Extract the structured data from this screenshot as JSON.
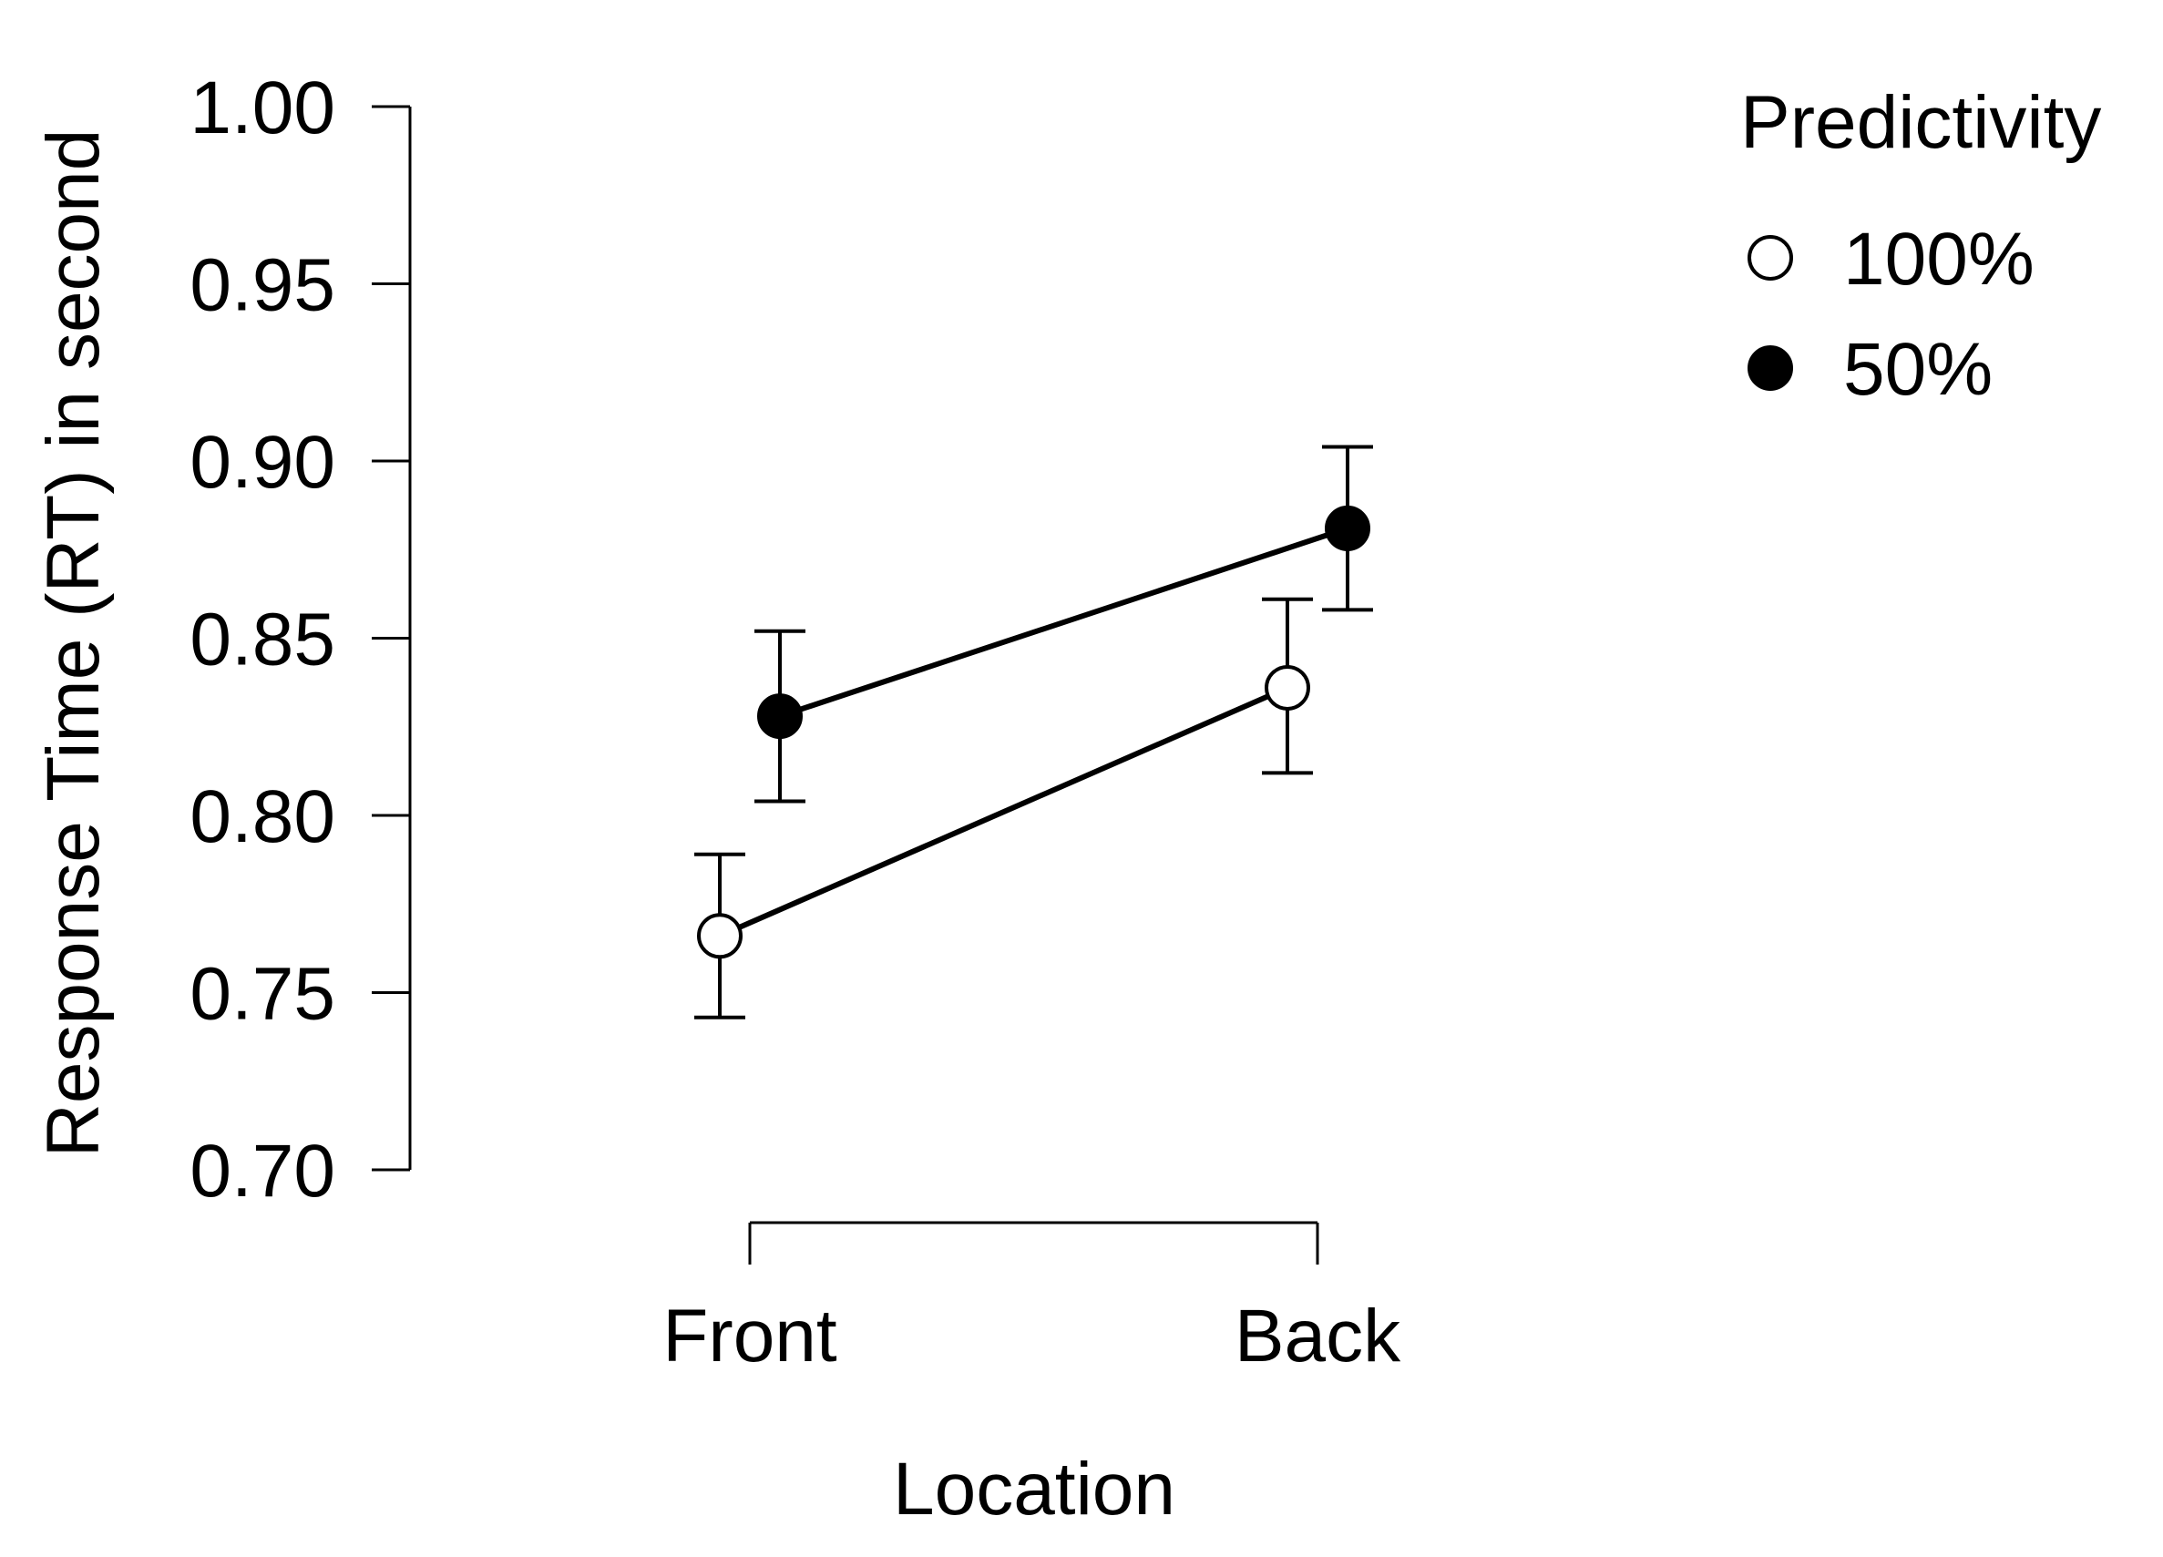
{
  "chart_data": {
    "type": "line",
    "xlabel": "Location",
    "ylabel": "Response Time (RT) in second",
    "categories": [
      "Front",
      "Back"
    ],
    "ylim": [
      0.7,
      1.0
    ],
    "yticks": [
      "0.70",
      "0.75",
      "0.80",
      "0.85",
      "0.90",
      "0.95",
      "1.00"
    ],
    "legend": {
      "title": "Predictivity",
      "position": "top-right"
    },
    "grid": false,
    "series": [
      {
        "name": "100%",
        "marker": "open-circle",
        "fill": "#ffffff",
        "values": [
          0.766,
          0.836
        ],
        "error_low": [
          0.743,
          0.812
        ],
        "error_high": [
          0.789,
          0.861
        ]
      },
      {
        "name": "50%",
        "marker": "filled-circle",
        "fill": "#000000",
        "values": [
          0.828,
          0.881
        ],
        "error_low": [
          0.804,
          0.858
        ],
        "error_high": [
          0.852,
          0.904
        ]
      }
    ]
  }
}
